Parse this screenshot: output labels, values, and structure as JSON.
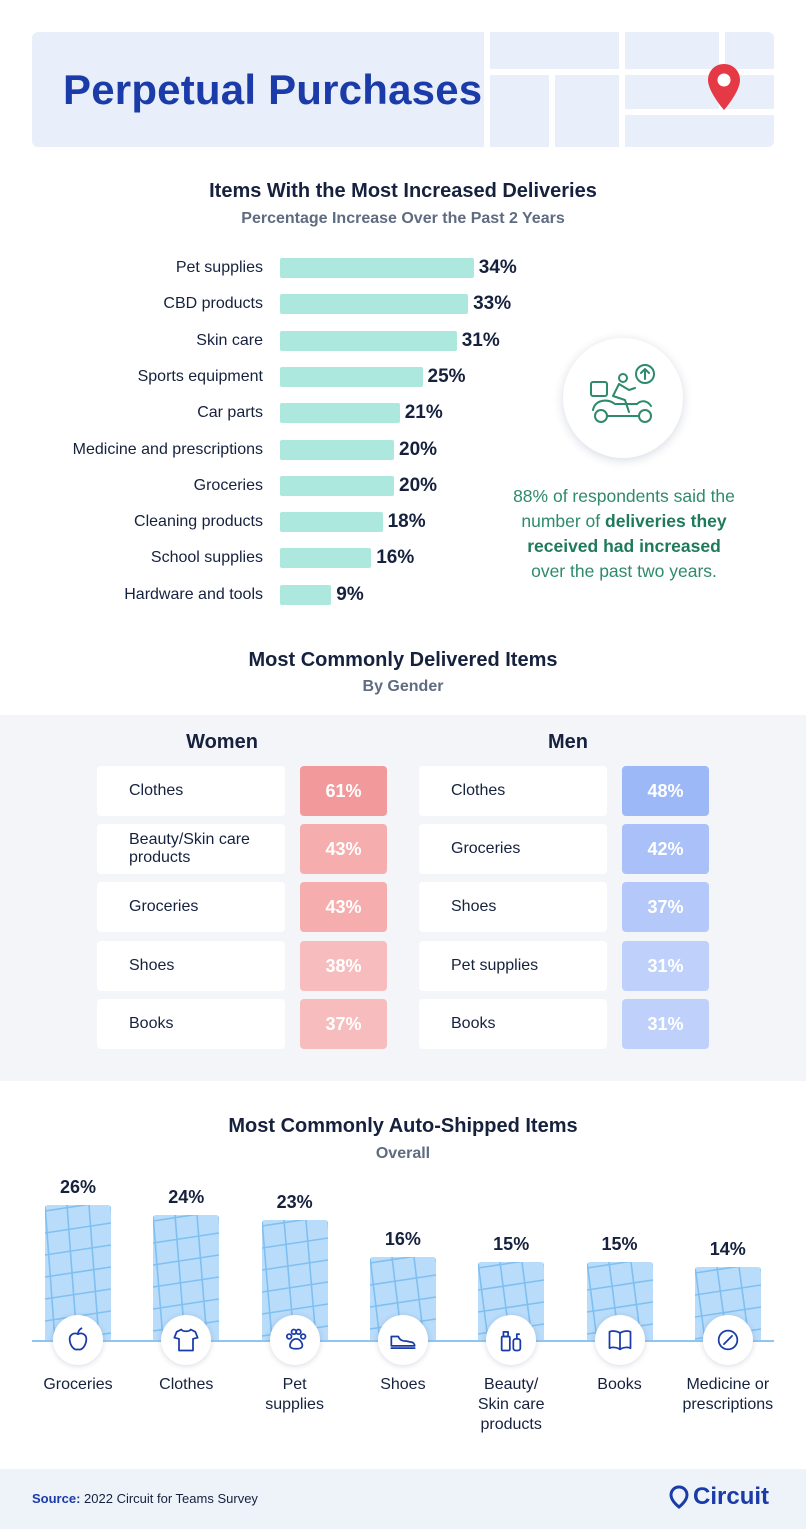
{
  "header": {
    "title": "Perpetual Purchases"
  },
  "deliveries": {
    "title": "Items With the Most Increased Deliveries",
    "subtitle": "Percentage Increase Over the Past 2 Years"
  },
  "callout": {
    "part1": "88% of respondents said the number of ",
    "bold": "deliveries they received had increased",
    "part2": " over the past two years."
  },
  "gender": {
    "title": "Most Commonly Delivered Items",
    "subtitle": "By Gender",
    "women_label": "Women",
    "men_label": "Men",
    "women": [
      {
        "item": "Clothes",
        "pct": "61%"
      },
      {
        "item": "Beauty/Skin care products",
        "pct": "43%"
      },
      {
        "item": "Groceries",
        "pct": "43%"
      },
      {
        "item": "Shoes",
        "pct": "38%"
      },
      {
        "item": "Books",
        "pct": "37%"
      }
    ],
    "men": [
      {
        "item": "Clothes",
        "pct": "48%"
      },
      {
        "item": "Groceries",
        "pct": "42%"
      },
      {
        "item": "Shoes",
        "pct": "37%"
      },
      {
        "item": "Pet supplies",
        "pct": "31%"
      },
      {
        "item": "Books",
        "pct": "31%"
      }
    ],
    "women_colors": [
      "#f2999b",
      "#f5adae",
      "#f5adae",
      "#f7bcbd",
      "#f7bcbd"
    ],
    "men_colors": [
      "#9db8f7",
      "#a9c1f8",
      "#b4c9f9",
      "#bfd1fa",
      "#bfd1fa"
    ]
  },
  "autoship": {
    "title": "Most Commonly Auto-Shipped Items",
    "subtitle": "Overall"
  },
  "footer": {
    "source_label": "Source:",
    "source_text": "2022 Circuit for Teams Survey",
    "brand": "Circuit"
  },
  "colors": {
    "brand_blue": "#1a3ba8",
    "bar_mint": "#ade8de",
    "callout_green": "#2e8a6d",
    "column_blue": "#b9dcfb"
  },
  "chart_data": [
    {
      "type": "bar",
      "orientation": "horizontal",
      "title": "Items With the Most Increased Deliveries",
      "subtitle": "Percentage Increase Over the Past 2 Years",
      "categories": [
        "Pet supplies",
        "CBD products",
        "Skin care",
        "Sports equipment",
        "Car parts",
        "Medicine and prescriptions",
        "Groceries",
        "Cleaning products",
        "School supplies",
        "Hardware and tools"
      ],
      "values": [
        34,
        33,
        31,
        25,
        21,
        20,
        20,
        18,
        16,
        9
      ],
      "value_labels": [
        "34%",
        "33%",
        "31%",
        "25%",
        "21%",
        "20%",
        "20%",
        "18%",
        "16%",
        "9%"
      ],
      "unit": "%"
    },
    {
      "type": "bar",
      "orientation": "vertical",
      "title": "Most Commonly Auto-Shipped Items",
      "subtitle": "Overall",
      "categories": [
        "Groceries",
        "Clothes",
        "Pet supplies",
        "Shoes",
        "Beauty/ Skin care products",
        "Books",
        "Medicine or prescriptions"
      ],
      "category_lines": [
        [
          "Groceries"
        ],
        [
          "Clothes"
        ],
        [
          "Pet",
          "supplies"
        ],
        [
          "Shoes"
        ],
        [
          "Beauty/",
          "Skin care",
          "products"
        ],
        [
          "Books"
        ],
        [
          "Medicine or",
          "prescriptions"
        ]
      ],
      "icons": [
        "apple-icon",
        "shirt-icon",
        "paw-icon",
        "shoe-icon",
        "skincare-bottle-icon",
        "book-icon",
        "pill-icon"
      ],
      "values": [
        26,
        24,
        23,
        16,
        15,
        15,
        14
      ],
      "value_labels": [
        "26%",
        "24%",
        "23%",
        "16%",
        "15%",
        "15%",
        "14%"
      ],
      "unit": "%"
    }
  ]
}
